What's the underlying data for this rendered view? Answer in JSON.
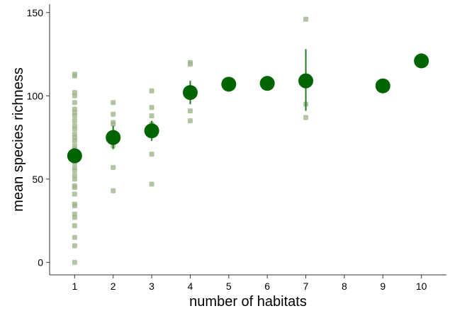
{
  "chart_data": {
    "type": "scatter",
    "title": "",
    "xlabel": "number of habitats",
    "ylabel": "mean species richness",
    "xlim": [
      0.35,
      10.65
    ],
    "ylim": [
      -7.5,
      155
    ],
    "x_ticks": [
      1,
      2,
      3,
      4,
      5,
      6,
      7,
      8,
      9,
      10
    ],
    "y_ticks": [
      0,
      50,
      100,
      150
    ],
    "grid": false,
    "legend": "none",
    "colors": {
      "points": "#9fb58c",
      "means": "#006400",
      "errorbars": "#1f7a1f",
      "axis": "#333333"
    },
    "series": [
      {
        "kind": "raw",
        "points": [
          [
            1,
            0
          ],
          [
            1,
            10
          ],
          [
            1,
            15
          ],
          [
            1,
            22
          ],
          [
            1,
            27
          ],
          [
            1,
            29
          ],
          [
            1,
            34
          ],
          [
            1,
            35
          ],
          [
            1,
            41
          ],
          [
            1,
            45
          ],
          [
            1,
            46
          ],
          [
            1,
            50
          ],
          [
            1,
            52
          ],
          [
            1,
            55
          ],
          [
            1,
            57
          ],
          [
            1,
            60
          ],
          [
            1,
            63
          ],
          [
            1,
            66
          ],
          [
            1,
            68
          ],
          [
            1,
            70
          ],
          [
            1,
            73
          ],
          [
            1,
            75
          ],
          [
            1,
            77
          ],
          [
            1,
            80
          ],
          [
            1,
            82
          ],
          [
            1,
            85
          ],
          [
            1,
            88
          ],
          [
            1,
            90
          ],
          [
            1,
            92
          ],
          [
            1,
            96
          ],
          [
            1,
            100
          ],
          [
            1,
            102
          ],
          [
            1,
            112
          ],
          [
            1,
            113
          ],
          [
            2,
            43
          ],
          [
            2,
            57
          ],
          [
            2,
            70
          ],
          [
            2,
            78
          ],
          [
            2,
            83
          ],
          [
            2,
            84
          ],
          [
            2,
            89
          ],
          [
            2,
            96
          ],
          [
            3,
            47
          ],
          [
            3,
            65
          ],
          [
            3,
            80
          ],
          [
            3,
            83
          ],
          [
            3,
            88
          ],
          [
            3,
            93
          ],
          [
            3,
            103
          ],
          [
            4,
            85
          ],
          [
            4,
            91
          ],
          [
            4,
            100
          ],
          [
            4,
            103
          ],
          [
            4,
            119
          ],
          [
            4,
            120
          ],
          [
            7,
            87
          ],
          [
            7,
            95
          ],
          [
            7,
            146
          ]
        ]
      },
      {
        "kind": "mean",
        "points": [
          {
            "x": 1,
            "y": 64,
            "lo": 60,
            "hi": 68
          },
          {
            "x": 2,
            "y": 75,
            "lo": 68,
            "hi": 82
          },
          {
            "x": 3,
            "y": 79,
            "lo": 73,
            "hi": 85
          },
          {
            "x": 4,
            "y": 102,
            "lo": 95,
            "hi": 109
          },
          {
            "x": 5,
            "y": 107
          },
          {
            "x": 6,
            "y": 107.5
          },
          {
            "x": 7,
            "y": 109,
            "lo": 91,
            "hi": 128
          },
          {
            "x": 9,
            "y": 106
          },
          {
            "x": 10,
            "y": 121
          }
        ]
      }
    ]
  }
}
